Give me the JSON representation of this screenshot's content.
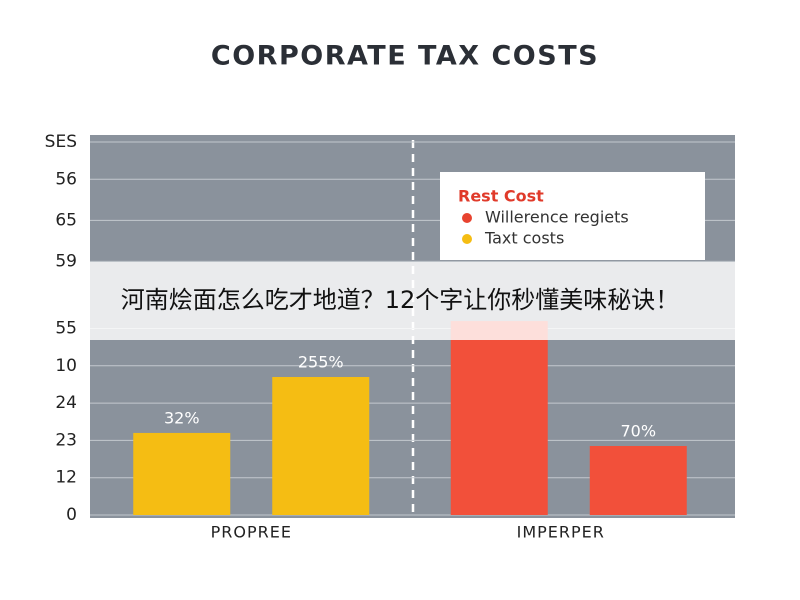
{
  "chart_data": {
    "type": "grouped-bar",
    "title": "CORPORATE TAX COSTS",
    "groups": [
      {
        "name": "PROPREE",
        "bars": [
          {
            "value": 2.2,
            "color": "#f5bd13",
            "label": "32%"
          },
          {
            "value": 3.7,
            "color": "#f5bd13",
            "label": "255%"
          }
        ]
      },
      {
        "name": "IMPERPER",
        "bars": [
          {
            "value": 5.2,
            "color": "#f2503a"
          },
          {
            "value": 1.85,
            "color": "#f2503a",
            "label": "70%"
          }
        ]
      }
    ],
    "ylim": [
      0,
      10
    ],
    "yticks": [
      0,
      {
        "value": 1,
        "label": "12"
      },
      {
        "value": 2,
        "label": "23"
      },
      {
        "value": 3,
        "label": "24"
      },
      {
        "value": 4,
        "label": "10"
      },
      {
        "value": 5,
        "label": "55"
      },
      {
        "value": 6.8,
        "label": "59"
      },
      {
        "value": 7.9,
        "label": "65"
      },
      {
        "value": 9,
        "label": "56"
      },
      {
        "value": 10,
        "label": "SES"
      }
    ],
    "grid": true,
    "legend": {
      "title": "Rest Cost",
      "entries": [
        {
          "name": "Willerence regiets",
          "color": "#e8432f"
        },
        {
          "name": "Taxt costs",
          "color": "#f5bd13"
        }
      ]
    }
  },
  "banner": {
    "text": "河南烩面怎么吃才地道？12个字让你秒懂美味秘诀！"
  }
}
